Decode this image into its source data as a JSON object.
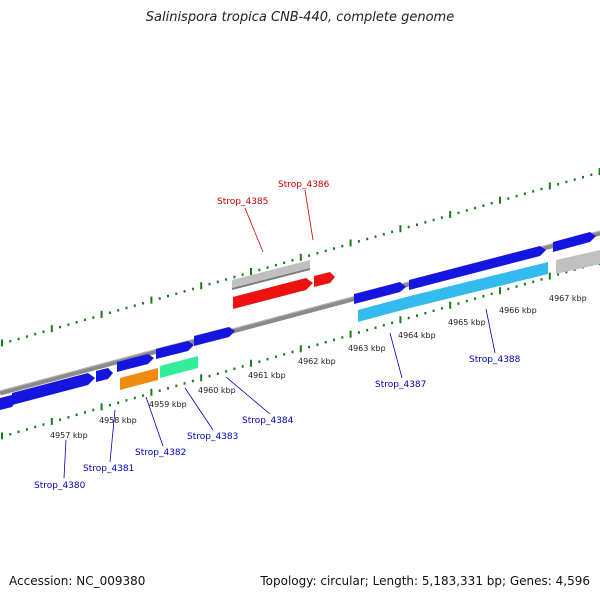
{
  "title": "Salinispora tropica CNB-440, complete genome",
  "footer": {
    "accession": "Accession: NC_009380",
    "topology": "Topology: circular; Length: 5,183,331 bp; Genes: 4,596"
  },
  "colors": {
    "backbone": "#8a8a8a",
    "tick": "#1a7a1a",
    "forward_gene": "#1515e0",
    "highlight_red": "#ee1111",
    "gray_feature": "#c0c0c0",
    "label_red": "#cc0000",
    "label_blue": "#0000bb",
    "orange": "#f08a10",
    "aqua": "#33ee99",
    "sky": "#33bbee"
  },
  "ticks": [
    {
      "id": "4957",
      "label": "4957 kbp"
    },
    {
      "id": "4958",
      "label": "4958 kbp"
    },
    {
      "id": "4959",
      "label": "4959 kbp"
    },
    {
      "id": "4960",
      "label": "4960 kbp"
    },
    {
      "id": "4961",
      "label": "4961 kbp"
    },
    {
      "id": "4962",
      "label": "4962 kbp"
    },
    {
      "id": "4963",
      "label": "4963 kbp"
    },
    {
      "id": "4964",
      "label": "4964 kbp"
    },
    {
      "id": "4965",
      "label": "4965 kbp"
    },
    {
      "id": "4966",
      "label": "4966 kbp"
    },
    {
      "id": "4967",
      "label": "4967 kbp"
    }
  ],
  "gene_labels": [
    {
      "id": "Strop_4385",
      "label": "Strop_4385",
      "color": "#cc0000"
    },
    {
      "id": "Strop_4386",
      "label": "Strop_4386",
      "color": "#cc0000"
    },
    {
      "id": "Strop_4380",
      "label": "Strop_4380",
      "color": "#0000bb"
    },
    {
      "id": "Strop_4381",
      "label": "Strop_4381",
      "color": "#0000bb"
    },
    {
      "id": "Strop_4382",
      "label": "Strop_4382",
      "color": "#0000bb"
    },
    {
      "id": "Strop_4383",
      "label": "Strop_4383",
      "color": "#0000bb"
    },
    {
      "id": "Strop_4384",
      "label": "Strop_4384",
      "color": "#0000bb"
    },
    {
      "id": "Strop_4387",
      "label": "Strop_4387",
      "color": "#0000bb"
    },
    {
      "id": "Strop_4388",
      "label": "Strop_4388",
      "color": "#0000bb"
    }
  ]
}
